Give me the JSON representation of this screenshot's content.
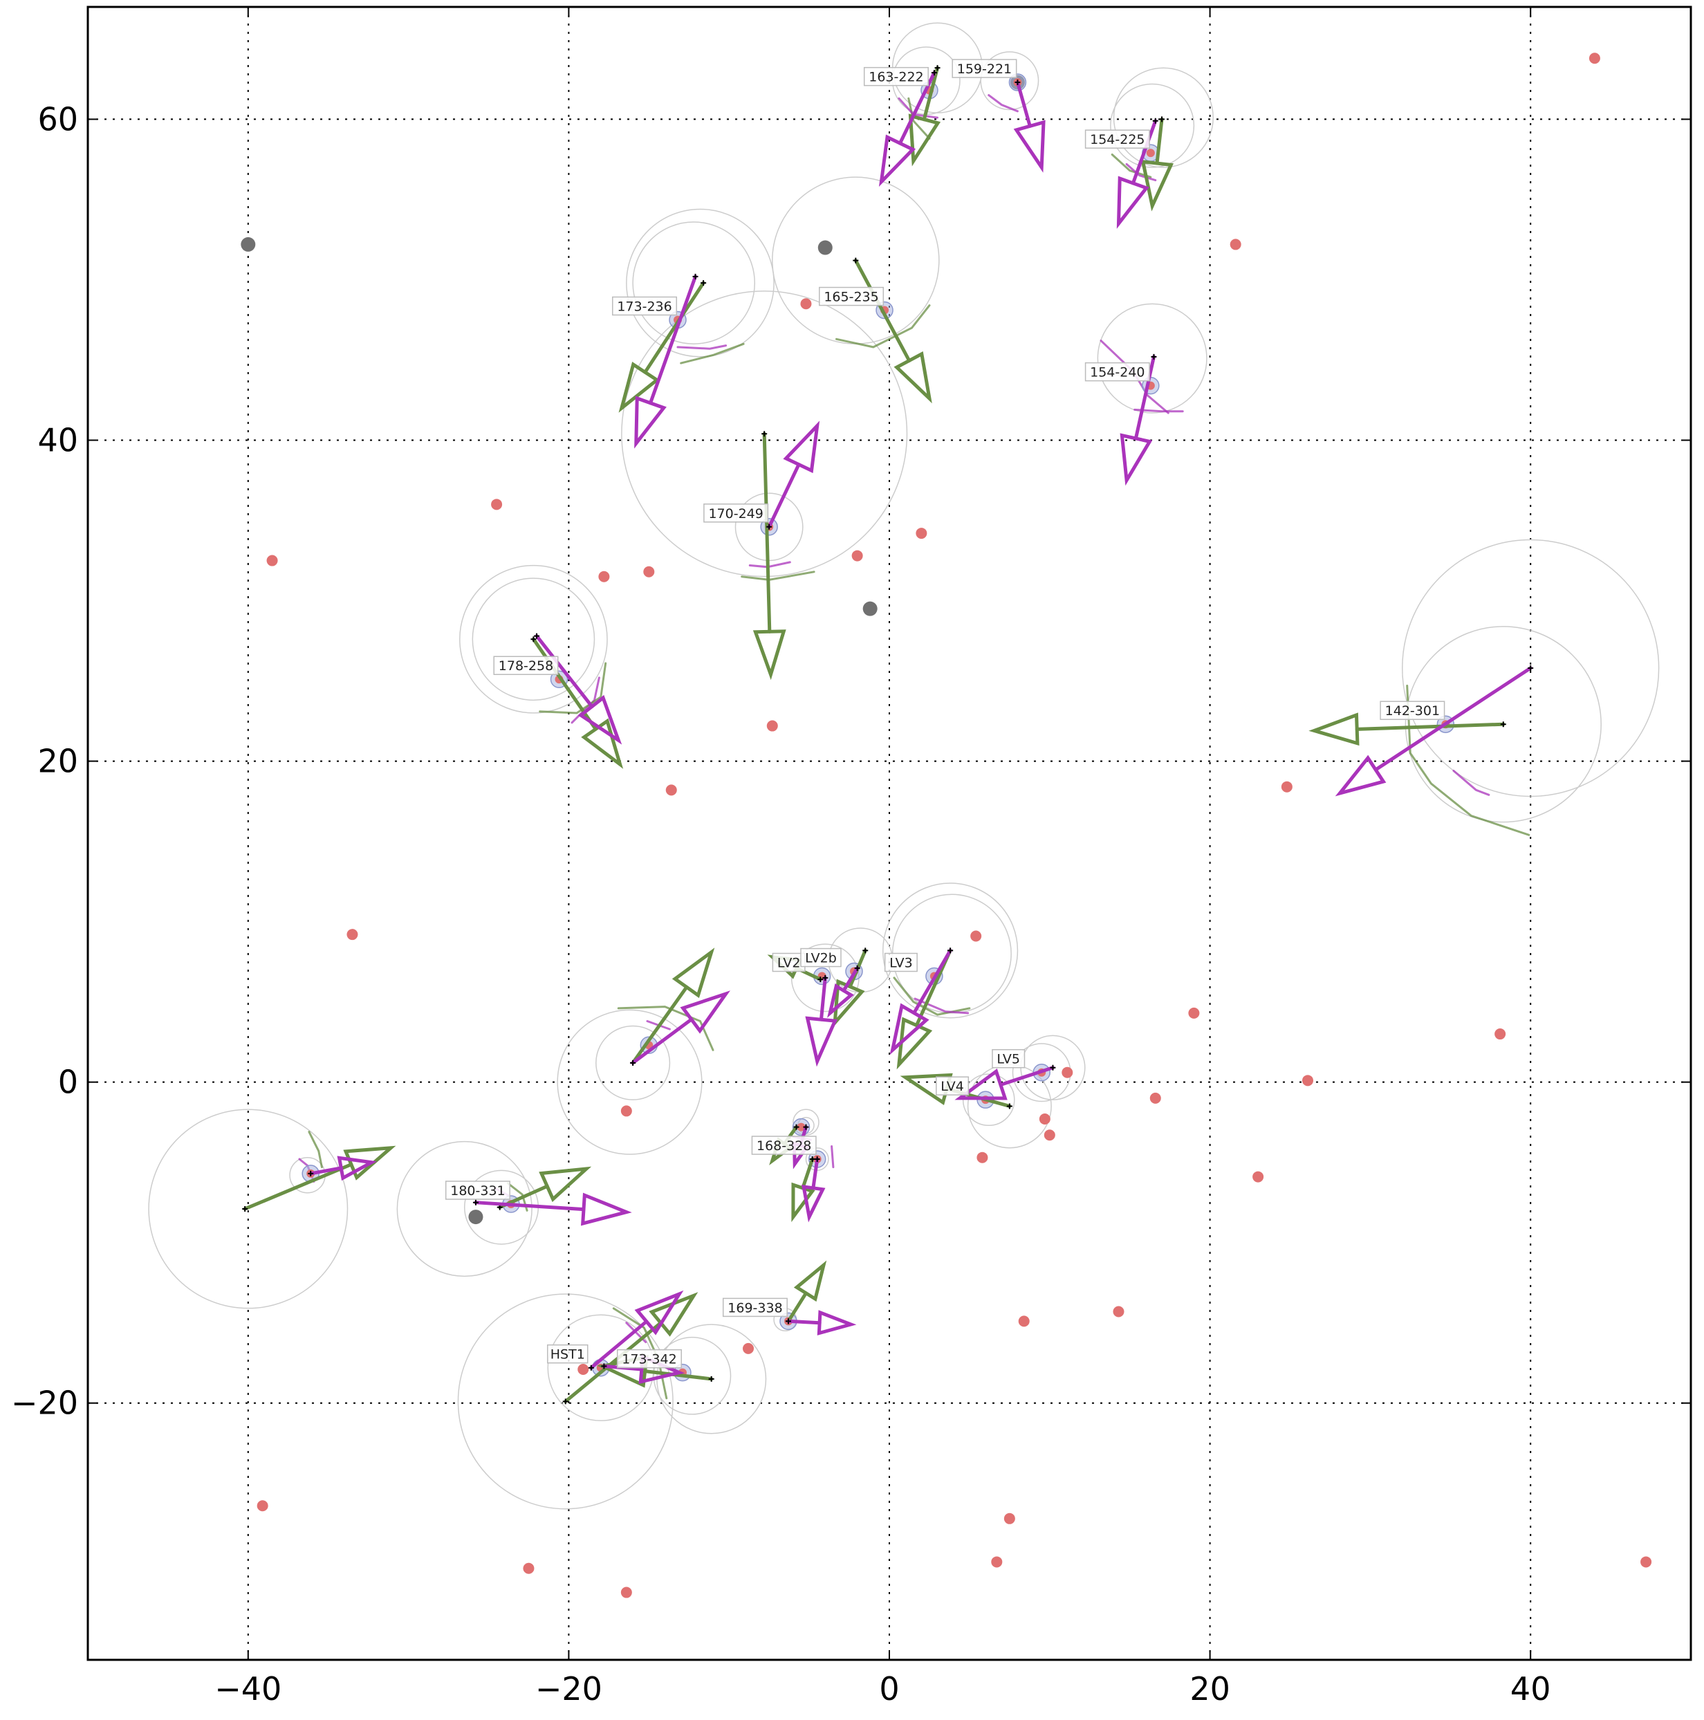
{
  "chart_data": {
    "type": "scatter",
    "xlim": [
      -50,
      50
    ],
    "ylim": [
      -36,
      67
    ],
    "xticks": [
      -40,
      -20,
      0,
      20,
      40
    ],
    "yticks": [
      -20,
      0,
      20,
      40,
      60
    ],
    "xtick_labels": [
      "−40",
      "−20",
      "0",
      "20",
      "40"
    ],
    "ytick_labels": [
      "−20",
      "0",
      "20",
      "40",
      "60"
    ],
    "grid": true,
    "colors": {
      "red_point": "#e07070",
      "gray_point": "#707070",
      "magenta_arrow": "#aa33bb",
      "green_arrow": "#6a8f45",
      "ring": "#cccccc",
      "source_halo": "#aab4e0"
    },
    "red_points": [
      [
        -38.5,
        32.5
      ],
      [
        -24.5,
        36
      ],
      [
        -17.8,
        31.5
      ],
      [
        -15,
        31.8
      ],
      [
        -5.2,
        48.5
      ],
      [
        -2,
        32.8
      ],
      [
        2,
        34.2
      ],
      [
        -7.3,
        22.2
      ],
      [
        -13.6,
        18.2
      ],
      [
        21.6,
        52.2
      ],
      [
        44,
        63.8
      ],
      [
        24.8,
        18.4
      ],
      [
        19,
        4.3
      ],
      [
        38.1,
        3
      ],
      [
        26.1,
        0.1
      ],
      [
        16.6,
        -1
      ],
      [
        23,
        -5.9
      ],
      [
        14.3,
        -14.3
      ],
      [
        8.4,
        -14.9
      ],
      [
        9.7,
        -2.3
      ],
      [
        10,
        -3.3
      ],
      [
        5.8,
        -4.7
      ],
      [
        11.1,
        0.6
      ],
      [
        5.4,
        9.1
      ],
      [
        -16.4,
        -1.8
      ],
      [
        -33.5,
        9.2
      ],
      [
        -39.1,
        -26.4
      ],
      [
        -22.5,
        -30.3
      ],
      [
        -16.4,
        -31.8
      ],
      [
        -8.8,
        -16.6
      ],
      [
        -19.1,
        -17.9
      ],
      [
        7.5,
        -27.2
      ],
      [
        6.7,
        -29.9
      ],
      [
        47.2,
        -29.9
      ]
    ],
    "gray_points": [
      [
        -40,
        52.2
      ],
      [
        -4,
        52
      ],
      [
        -1.2,
        29.5
      ],
      [
        -25.8,
        -8.4
      ],
      [
        8,
        62.3
      ]
    ],
    "sources": [
      {
        "name": "159-221",
        "x": 8,
        "y": 62.3
      },
      {
        "name": "163-222",
        "x": 2.5,
        "y": 61.8
      },
      {
        "name": "154-225",
        "x": 16.3,
        "y": 57.9
      },
      {
        "name": "173-236",
        "x": -13.2,
        "y": 47.5
      },
      {
        "name": "165-235",
        "x": -0.3,
        "y": 48.1
      },
      {
        "name": "154-240",
        "x": 16.3,
        "y": 43.4
      },
      {
        "name": "170-249",
        "x": -7.5,
        "y": 34.6
      },
      {
        "name": "178-258",
        "x": -20.6,
        "y": 25.1
      },
      {
        "name": "142-301",
        "x": 34.7,
        "y": 22.3
      },
      {
        "name": "LV2",
        "x": -4.2,
        "y": 6.6
      },
      {
        "name": "LV2b",
        "x": -2.2,
        "y": 6.9
      },
      {
        "name": "LV3",
        "x": 2.8,
        "y": 6.6
      },
      {
        "name": "LV5",
        "x": 9.5,
        "y": 0.6
      },
      {
        "name": "LV4",
        "x": 6,
        "y": -1.1
      },
      {
        "name": "168-328",
        "x": -4.5,
        "y": -4.8
      },
      {
        "name": "180-331",
        "x": -23.6,
        "y": -7.6
      },
      {
        "name": "169-338",
        "x": -6.3,
        "y": -14.9
      },
      {
        "name": "HST1",
        "x": -18,
        "y": -17.8
      },
      {
        "name": "173-342",
        "x": -12.9,
        "y": -18.1
      },
      {
        "name": "",
        "x": -15,
        "y": 2.3
      },
      {
        "name": "",
        "x": -36.1,
        "y": -5.7
      },
      {
        "name": "",
        "x": -5.5,
        "y": -2.8
      }
    ],
    "magenta_arrows": [
      {
        "x": 8,
        "y": 62.3,
        "dx": 1.5,
        "dy": -5.3
      },
      {
        "x": 2.8,
        "y": 62.9,
        "dx": -3.3,
        "dy": -6.8
      },
      {
        "x": 16.6,
        "y": 59.9,
        "dx": -2.3,
        "dy": -6.4
      },
      {
        "x": -12.1,
        "y": 50.2,
        "dx": -3.7,
        "dy": -10.4
      },
      {
        "x": 16.5,
        "y": 45.2,
        "dx": -1.7,
        "dy": -7.7
      },
      {
        "x": -7.5,
        "y": 34.6,
        "dx": 3,
        "dy": 6.3
      },
      {
        "x": -22,
        "y": 27.8,
        "dx": 5.1,
        "dy": -6.5
      },
      {
        "x": 40,
        "y": 25.8,
        "dx": -11.9,
        "dy": -7.8
      },
      {
        "x": -16,
        "y": 1.2,
        "dx": 5.8,
        "dy": 4.3
      },
      {
        "x": -4,
        "y": 6.5,
        "dx": -0.5,
        "dy": -5.2
      },
      {
        "x": -2,
        "y": 7.1,
        "dx": -1.7,
        "dy": -2.8
      },
      {
        "x": 3.8,
        "y": 8.2,
        "dx": -3.6,
        "dy": -6.2
      },
      {
        "x": 10.2,
        "y": 0.9,
        "dx": -5.8,
        "dy": -1.9
      },
      {
        "x": -5.2,
        "y": -2.8,
        "dx": -0.7,
        "dy": -2.3
      },
      {
        "x": -4.5,
        "y": -4.8,
        "dx": -0.5,
        "dy": -3.6
      },
      {
        "x": -25.8,
        "y": -7.5,
        "dx": 9.4,
        "dy": -0.6
      },
      {
        "x": -6.3,
        "y": -14.9,
        "dx": 3.9,
        "dy": -0.2
      },
      {
        "x": -18.6,
        "y": -17.8,
        "dx": 5.5,
        "dy": 4.6
      },
      {
        "x": -17.8,
        "y": -17.7,
        "dx": 4.7,
        "dy": -0.4
      },
      {
        "x": -36.1,
        "y": -5.7,
        "dx": 3.8,
        "dy": 0.7
      }
    ],
    "green_arrows": [
      {
        "x": 3,
        "y": 63.2,
        "dx": -1.5,
        "dy": -5.8
      },
      {
        "x": 17,
        "y": 60,
        "dx": -0.6,
        "dy": -5.4
      },
      {
        "x": -11.6,
        "y": 49.8,
        "dx": -5.1,
        "dy": -7.8
      },
      {
        "x": -2.1,
        "y": 51.2,
        "dx": 4.6,
        "dy": -8.6
      },
      {
        "x": -7.8,
        "y": 40.4,
        "dx": 0.4,
        "dy": -15
      },
      {
        "x": -22.2,
        "y": 27.6,
        "dx": 5.4,
        "dy": -7.8
      },
      {
        "x": 38.3,
        "y": 22.3,
        "dx": -11.8,
        "dy": -0.4
      },
      {
        "x": -16,
        "y": 1.2,
        "dx": 4.9,
        "dy": 6.9
      },
      {
        "x": -4.3,
        "y": 6.4,
        "dx": -3,
        "dy": 1.4
      },
      {
        "x": -1.5,
        "y": 8.2,
        "dx": -1.9,
        "dy": -4.5
      },
      {
        "x": 3.8,
        "y": 8.2,
        "dx": -3.2,
        "dy": -7.1
      },
      {
        "x": 7.5,
        "y": -1.5,
        "dx": -6.5,
        "dy": 1.8
      },
      {
        "x": -5.8,
        "y": -2.8,
        "dx": -1.5,
        "dy": -2.1
      },
      {
        "x": -4.8,
        "y": -4.8,
        "dx": -1.2,
        "dy": -3.6
      },
      {
        "x": -24.3,
        "y": -7.8,
        "dx": 5.4,
        "dy": 2.4
      },
      {
        "x": -6.3,
        "y": -14.9,
        "dx": 2.2,
        "dy": 3.5
      },
      {
        "x": -20.2,
        "y": -19.9,
        "dx": 8,
        "dy": 6.6
      },
      {
        "x": -11.1,
        "y": -18.5,
        "dx": -6.8,
        "dy": 0.8
      },
      {
        "x": -40.2,
        "y": -7.9,
        "dx": 9.1,
        "dy": 3.8
      }
    ],
    "rings": [
      [
        3,
        63.2,
        2.8
      ],
      [
        2.3,
        62.4,
        2.1
      ],
      [
        7.5,
        62.4,
        1.8
      ],
      [
        17.1,
        60.1,
        3.1
      ],
      [
        16.4,
        59.6,
        2.6
      ],
      [
        -11.8,
        49.8,
        4.6
      ],
      [
        -12.2,
        49.8,
        3.8
      ],
      [
        -2.1,
        51.2,
        5.2
      ],
      [
        -7.8,
        40.4,
        8.9
      ],
      [
        16.4,
        45.1,
        3.4
      ],
      [
        -7.5,
        34.6,
        2.1
      ],
      [
        -22.2,
        27.6,
        4.6
      ],
      [
        -22.2,
        27.6,
        3.8
      ],
      [
        40,
        25.8,
        8
      ],
      [
        38.3,
        22.3,
        6.1
      ],
      [
        -16,
        1.2,
        2.3
      ],
      [
        -16.2,
        0,
        4.5
      ],
      [
        -4,
        6.5,
        2.1
      ],
      [
        -1.8,
        7.6,
        2
      ],
      [
        3.8,
        8.2,
        4.2
      ],
      [
        3.9,
        8,
        3.7
      ],
      [
        10.2,
        0.9,
        2
      ],
      [
        9.5,
        0.6,
        1.8
      ],
      [
        7.5,
        -1.5,
        2.6
      ],
      [
        6.2,
        -1.1,
        1.6
      ],
      [
        -5.2,
        -2.5,
        0.8
      ],
      [
        -5.2,
        -2.7,
        0.5
      ],
      [
        -4.5,
        -4.8,
        0.7
      ],
      [
        -26.5,
        -7.9,
        4.2
      ],
      [
        -24.2,
        -7.8,
        2.3
      ],
      [
        -40,
        -7.9,
        6.2
      ],
      [
        -36.3,
        -5.8,
        1.1
      ],
      [
        -6.5,
        -14.8,
        0.7
      ],
      [
        -20.2,
        -19.9,
        6.7
      ],
      [
        -18,
        -17.8,
        3.3
      ],
      [
        -11.1,
        -18.5,
        3.4
      ],
      [
        -12.3,
        -18.3,
        2.4
      ]
    ],
    "uncertainty_arcs": [
      {
        "color": "green",
        "points": [
          [
            1.2,
            61.3
          ],
          [
            1.5,
            59.9
          ],
          [
            2.5,
            58.8
          ]
        ]
      },
      {
        "color": "magenta",
        "points": [
          [
            0.6,
            61.3
          ],
          [
            1.5,
            60.3
          ],
          [
            3,
            60.1
          ]
        ]
      },
      {
        "color": "magenta",
        "points": [
          [
            6.2,
            61.5
          ],
          [
            7,
            60.9
          ],
          [
            8,
            60.5
          ]
        ]
      },
      {
        "color": "green",
        "points": [
          [
            13.9,
            57.8
          ],
          [
            15,
            56.8
          ],
          [
            16.3,
            56.4
          ]
        ]
      },
      {
        "color": "magenta",
        "points": [
          [
            14.8,
            57.2
          ],
          [
            15.6,
            56.5
          ],
          [
            16.6,
            56.2
          ]
        ]
      },
      {
        "color": "magenta",
        "points": [
          [
            -13.2,
            45.8
          ],
          [
            -11.2,
            45.7
          ],
          [
            -10.2,
            45.9
          ]
        ]
      },
      {
        "color": "green",
        "points": [
          [
            -13,
            44.8
          ],
          [
            -11,
            45.3
          ],
          [
            -9.1,
            46
          ]
        ]
      },
      {
        "color": "green",
        "points": [
          [
            -3.3,
            46.3
          ],
          [
            -1,
            45.8
          ],
          [
            1.4,
            47
          ],
          [
            2.5,
            48.4
          ]
        ]
      },
      {
        "color": "magenta",
        "points": [
          [
            13.2,
            46.2
          ],
          [
            15.2,
            44.3
          ],
          [
            16.1,
            42.8
          ],
          [
            17.4,
            41.7
          ]
        ]
      },
      {
        "color": "magenta",
        "points": [
          [
            15.3,
            41.9
          ],
          [
            17,
            41.8
          ],
          [
            18.3,
            41.8
          ]
        ]
      },
      {
        "color": "magenta",
        "points": [
          [
            -8.7,
            32.2
          ],
          [
            -7.6,
            32.1
          ],
          [
            -6.2,
            32.4
          ]
        ]
      },
      {
        "color": "green",
        "points": [
          [
            -9.2,
            31.5
          ],
          [
            -7.5,
            31.3
          ],
          [
            -4.7,
            31.8
          ]
        ]
      },
      {
        "color": "magenta",
        "points": [
          [
            -19.8,
            22.4
          ],
          [
            -18.4,
            23.8
          ],
          [
            -18.1,
            25.2
          ]
        ]
      },
      {
        "color": "green",
        "points": [
          [
            -21.8,
            23.1
          ],
          [
            -19.5,
            23
          ],
          [
            -18,
            24
          ],
          [
            -17.7,
            26.1
          ]
        ]
      },
      {
        "color": "green",
        "points": [
          [
            32.3,
            24.7
          ],
          [
            32.5,
            20.5
          ],
          [
            33.8,
            18.6
          ],
          [
            36.3,
            16.6
          ],
          [
            39.9,
            15.4
          ]
        ]
      },
      {
        "color": "magenta",
        "points": [
          [
            35.2,
            19.4
          ],
          [
            36.6,
            18.2
          ],
          [
            37.4,
            17.9
          ]
        ]
      },
      {
        "color": "green",
        "points": [
          [
            -16.9,
            4.6
          ],
          [
            -14,
            4.7
          ],
          [
            -11.8,
            3.8
          ],
          [
            -11,
            2
          ]
        ]
      },
      {
        "color": "magenta",
        "points": [
          [
            -15.1,
            3.8
          ],
          [
            -13.7,
            3.3
          ]
        ]
      },
      {
        "color": "green",
        "points": [
          [
            0.3,
            6.5
          ],
          [
            1.5,
            5
          ],
          [
            3,
            4.2
          ],
          [
            5,
            4.6
          ]
        ]
      },
      {
        "color": "magenta",
        "points": [
          [
            1.6,
            5.2
          ],
          [
            3.5,
            4.4
          ],
          [
            4.9,
            4.3
          ]
        ]
      },
      {
        "color": "magenta",
        "points": [
          [
            -6,
            -3.4
          ],
          [
            -4.9,
            -3.6
          ]
        ]
      },
      {
        "color": "magenta",
        "points": [
          [
            -3.6,
            -4
          ],
          [
            -3.5,
            -5.3
          ]
        ]
      },
      {
        "color": "green",
        "points": [
          [
            -36.2,
            -3.1
          ],
          [
            -35.6,
            -4.3
          ],
          [
            -35.4,
            -5.3
          ]
        ]
      },
      {
        "color": "magenta",
        "points": [
          [
            -36.8,
            -4.8
          ],
          [
            -36.3,
            -5.2
          ],
          [
            -35.9,
            -6.2
          ]
        ]
      },
      {
        "color": "green",
        "points": [
          [
            -23.8,
            -6.3
          ],
          [
            -22.9,
            -7
          ],
          [
            -22.6,
            -8
          ]
        ]
      },
      {
        "color": "magenta",
        "points": [
          [
            -24.6,
            -6.6
          ],
          [
            -23.7,
            -7.1
          ]
        ]
      },
      {
        "color": "green",
        "points": [
          [
            -17.2,
            -14.1
          ],
          [
            -15.3,
            -15.3
          ],
          [
            -14.4,
            -17.3
          ],
          [
            -13.9,
            -19.7
          ]
        ]
      },
      {
        "color": "magenta",
        "points": [
          [
            -16.4,
            -15
          ],
          [
            -15.2,
            -16.2
          ]
        ]
      }
    ]
  }
}
